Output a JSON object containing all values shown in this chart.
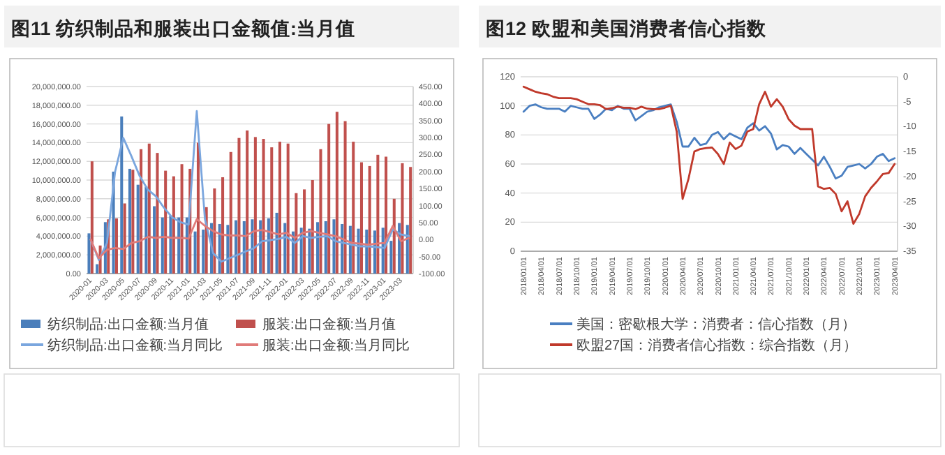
{
  "chart_data": [
    {
      "type": "bar",
      "title": "图11 纺织制品和服装出口金额值:当月值",
      "categories": [
        "2020-01",
        null,
        "2020-03",
        null,
        "2020-05",
        null,
        "2020-07",
        null,
        "2020-09",
        null,
        "2020-11",
        null,
        "2021-01",
        null,
        "2021-03",
        null,
        "2021-05",
        null,
        "2021-07",
        null,
        "2021-09",
        null,
        "2021-11",
        null,
        "2022-01",
        null,
        "2022-03",
        null,
        "2022-05",
        null,
        "2022-07",
        null,
        "2022-09",
        null,
        "2022-11",
        null,
        "2023-01",
        null,
        "2023-03",
        null
      ],
      "series": [
        {
          "name": "纺织制品:出口金额:当月值",
          "type": "bar",
          "color": "#4a7ebb",
          "values": [
            4300000,
            1000000,
            5500000,
            10900000,
            16800000,
            11200000,
            9500000,
            9300000,
            7200000,
            6000000,
            6200000,
            6000000,
            6000000,
            4500000,
            4700000,
            5400000,
            5300000,
            5200000,
            5700000,
            5600000,
            5800000,
            5700000,
            5900000,
            6500000,
            5400000,
            4500000,
            4900000,
            4800000,
            5500000,
            5600000,
            5800000,
            5300000,
            5100000,
            4800000,
            4700000,
            4600000,
            4900000,
            3500000,
            5400000,
            5200000
          ]
        },
        {
          "name": "服装:出口金额:当月值",
          "type": "bar",
          "color": "#c0504d",
          "values": [
            12000000,
            3000000,
            5800000,
            5900000,
            7500000,
            11100000,
            13300000,
            13900000,
            12900000,
            11000000,
            10400000,
            11700000,
            11200000,
            14000000,
            7100000,
            9100000,
            10300000,
            13000000,
            14500000,
            15300000,
            14600000,
            14400000,
            13500000,
            14100000,
            13900000,
            8600000,
            9000000,
            10000000,
            13300000,
            16000000,
            17300000,
            16300000,
            14100000,
            11900000,
            11500000,
            12700000,
            12500000,
            8000000,
            11800000,
            11400000
          ]
        },
        {
          "name": "纺织制品:出口金额:当月同比",
          "type": "line",
          "axis": "y2",
          "color": "#7aa6de",
          "values": [
            0,
            -60,
            -10,
            200,
            299,
            245,
            187,
            147,
            127,
            93,
            65,
            51,
            44,
            378,
            60,
            -40,
            -65,
            -55,
            -45,
            -35,
            -25,
            -5,
            -2,
            2,
            8,
            -10,
            10,
            5,
            8,
            10,
            -5,
            -10,
            -15,
            -20,
            -20,
            -22,
            -25,
            30,
            15,
            10
          ]
        },
        {
          "name": "服装:出口金额:当月同比",
          "type": "line",
          "axis": "y2",
          "color": "#e07b79",
          "values": [
            0,
            -55,
            -30,
            -25,
            -28,
            -10,
            -5,
            8,
            5,
            8,
            5,
            5,
            3,
            60,
            40,
            25,
            15,
            12,
            12,
            10,
            25,
            28,
            22,
            15,
            20,
            5,
            20,
            25,
            20,
            15,
            10,
            0,
            -10,
            -12,
            -15,
            -12,
            -10,
            40,
            -5,
            5
          ]
        }
      ],
      "ylim": [
        0,
        20000000
      ],
      "yticks": [
        {
          "value": 0,
          "label": "0.00"
        },
        {
          "value": 2000000,
          "label": "2,000,000.00"
        },
        {
          "value": 4000000,
          "label": "4,000,000.00"
        },
        {
          "value": 6000000,
          "label": "6,000,000.00"
        },
        {
          "value": 8000000,
          "label": "8,000,000.00"
        },
        {
          "value": 10000000,
          "label": "10,000,000.00"
        },
        {
          "value": 12000000,
          "label": "12,000,000.00"
        },
        {
          "value": 14000000,
          "label": "14,000,000.00"
        },
        {
          "value": 16000000,
          "label": "16,000,000.00"
        },
        {
          "value": 18000000,
          "label": "18,000,000.00"
        },
        {
          "value": 20000000,
          "label": "20,000,000.00"
        }
      ],
      "y2lim": [
        -100,
        450
      ],
      "y2ticks": [
        {
          "value": -100,
          "label": "-100.00"
        },
        {
          "value": -50,
          "label": "-50.00"
        },
        {
          "value": 0,
          "label": "0.00"
        },
        {
          "value": 50,
          "label": "50.00"
        },
        {
          "value": 100,
          "label": "100.00"
        },
        {
          "value": 150,
          "label": "150.00"
        },
        {
          "value": 200,
          "label": "200.00"
        },
        {
          "value": 250,
          "label": "250.00"
        },
        {
          "value": 300,
          "label": "300.00"
        },
        {
          "value": 350,
          "label": "350.00"
        },
        {
          "value": 400,
          "label": "400.00"
        },
        {
          "value": 450,
          "label": "450.00"
        }
      ],
      "grid": "y",
      "legend": "bottom",
      "marker": "none"
    },
    {
      "type": "line",
      "title": "图12 欧盟和美国消费者信心指数",
      "categories": [
        "2018/01/01",
        null,
        null,
        "2018/04/01",
        null,
        null,
        "2018/07/01",
        null,
        null,
        "2018/10/01",
        null,
        null,
        "2019/01/01",
        null,
        null,
        "2019/04/01",
        null,
        null,
        "2019/07/01",
        null,
        null,
        "2019/10/01",
        null,
        null,
        "2020/01/01",
        null,
        null,
        "2020/04/01",
        null,
        null,
        "2020/07/01",
        null,
        null,
        "2020/10/01",
        null,
        null,
        "2021/01/01",
        null,
        null,
        "2021/04/01",
        null,
        null,
        "2021/07/01",
        null,
        null,
        "2021/10/01",
        null,
        null,
        "2022/01/01",
        null,
        null,
        "2022/04/01",
        null,
        null,
        "2022/07/01",
        null,
        null,
        "2022/10/01",
        null,
        null,
        "2023/01/01",
        null,
        null,
        "2023/04/01"
      ],
      "series": [
        {
          "name": "美国：密歇根大学：消费者：信心指数（月）",
          "color": "#4a7fc1",
          "values": [
            96,
            100,
            101,
            99,
            98,
            98,
            98,
            96,
            100,
            99,
            98,
            98,
            91,
            94,
            98,
            97,
            100,
            98,
            98,
            90,
            93,
            96,
            97,
            99,
            100,
            101,
            89,
            72,
            72,
            78,
            73,
            74,
            80,
            82,
            77,
            81,
            79,
            77,
            85,
            88,
            83,
            86,
            81,
            70,
            73,
            72,
            67,
            71,
            67,
            63,
            59,
            65,
            58,
            50,
            52,
            58,
            59,
            60,
            57,
            60,
            65,
            67,
            62,
            64
          ]
        },
        {
          "name": "欧盟27国：消费者信心指数：综合指数（月）",
          "axis": "y2",
          "color": "#c0392b",
          "values": [
            -2.0,
            -2.5,
            -3.0,
            -3.3,
            -3.5,
            -4.0,
            -4.3,
            -4.3,
            -4.3,
            -4.5,
            -5.0,
            -5.5,
            -5.5,
            -5.7,
            -6.5,
            -6.3,
            -6.0,
            -6.2,
            -6.2,
            -6.5,
            -6.0,
            -6.4,
            -6.5,
            -6.5,
            -6.2,
            -5.8,
            -11,
            -24.5,
            -20.5,
            -15,
            -14.5,
            -14.3,
            -14.2,
            -15.5,
            -17.5,
            -13.2,
            -14.5,
            -13.8,
            -11,
            -10.5,
            -5.5,
            -3,
            -6,
            -4.5,
            -6,
            -8.5,
            -9.8,
            -10.5,
            -10.5,
            -10.5,
            -22,
            -22.5,
            -22.3,
            -23.5,
            -27,
            -25,
            -29.5,
            -27.5,
            -24,
            -22.3,
            -21,
            -19.5,
            -19.3,
            -17.5
          ]
        }
      ],
      "ylim": [
        0,
        120
      ],
      "yticks": [
        0,
        20,
        40,
        60,
        80,
        100,
        120
      ],
      "y2lim": [
        -35,
        0
      ],
      "y2ticks": [
        -35,
        -30,
        -25,
        -20,
        -15,
        -10,
        -5,
        0
      ],
      "grid": "y",
      "legend": "bottom",
      "marker": "none"
    }
  ]
}
